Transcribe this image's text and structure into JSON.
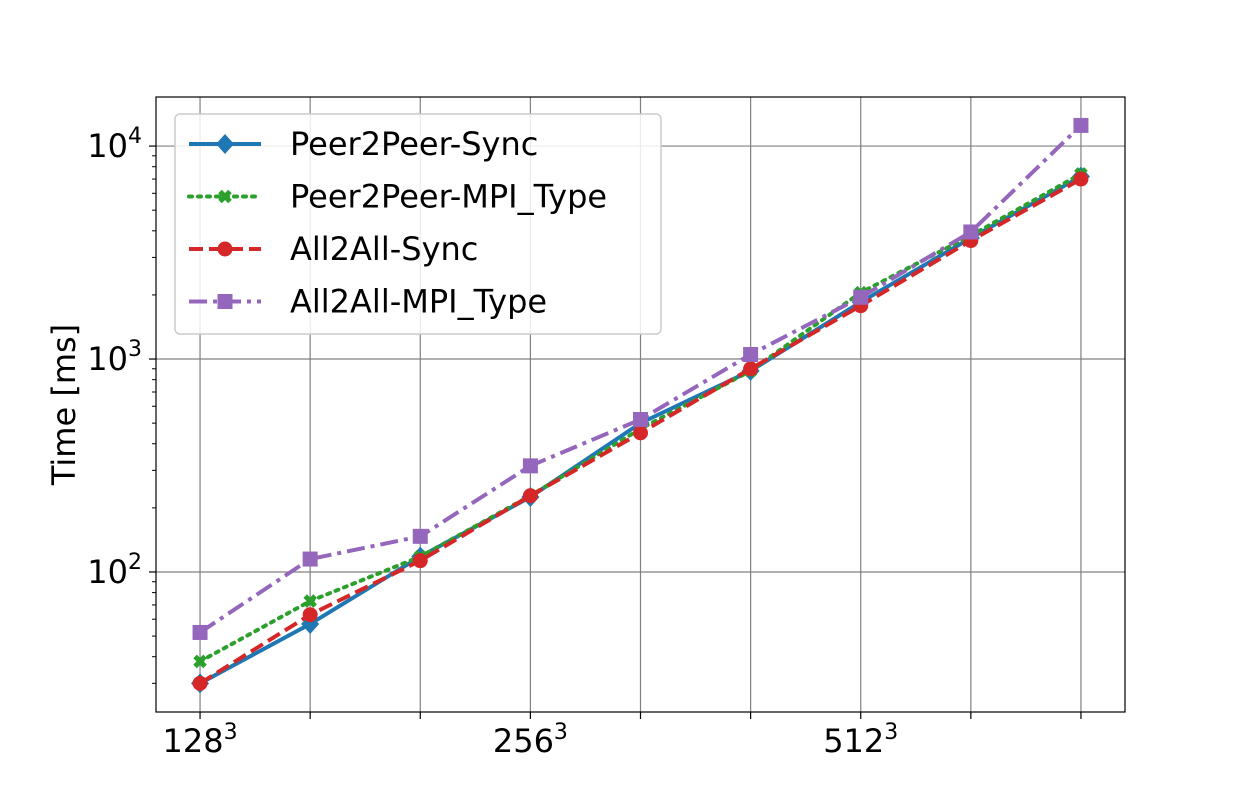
{
  "chart_data": {
    "type": "line",
    "ylabel": "Time [ms]",
    "xlabel": "",
    "yscale": "log",
    "ylim": [
      22,
      17000
    ],
    "xlim": [
      -0.4,
      8.4
    ],
    "x": [
      0,
      1,
      2,
      3,
      4,
      5,
      6,
      7,
      8
    ],
    "xticks": [
      {
        "pos": 0,
        "base": "128",
        "exp": "3"
      },
      {
        "pos": 3,
        "base": "256",
        "exp": "3"
      },
      {
        "pos": 6,
        "base": "512",
        "exp": "3"
      }
    ],
    "minor_x_ticks": [
      1,
      2,
      4,
      5,
      7,
      8
    ],
    "yticks": [
      {
        "value": 100,
        "base": "10",
        "exp": "2"
      },
      {
        "value": 1000,
        "base": "10",
        "exp": "3"
      },
      {
        "value": 10000,
        "base": "10",
        "exp": "4"
      }
    ],
    "grid": true,
    "legend_position": "top-left",
    "series": [
      {
        "name": "Peer2Peer-Sync",
        "color": "#1f77b4",
        "dash": "solid",
        "marker": "diamond",
        "values": [
          30,
          57,
          118,
          225,
          500,
          880,
          1850,
          3700,
          7200
        ]
      },
      {
        "name": "Peer2Peer-MPI_Type",
        "color": "#2ca02c",
        "dash": "dotted",
        "marker": "x",
        "values": [
          38,
          73,
          118,
          228,
          470,
          880,
          2050,
          3800,
          7400
        ]
      },
      {
        "name": "All2All-Sync",
        "color": "#d62728",
        "dash": "dashed",
        "marker": "circle",
        "values": [
          30,
          63,
          113,
          228,
          450,
          900,
          1780,
          3600,
          7000
        ]
      },
      {
        "name": "All2All-MPI_Type",
        "color": "#9467bd",
        "dash": "dashdot",
        "marker": "square",
        "values": [
          52,
          115,
          147,
          315,
          520,
          1050,
          1950,
          3950,
          12500
        ]
      }
    ]
  }
}
